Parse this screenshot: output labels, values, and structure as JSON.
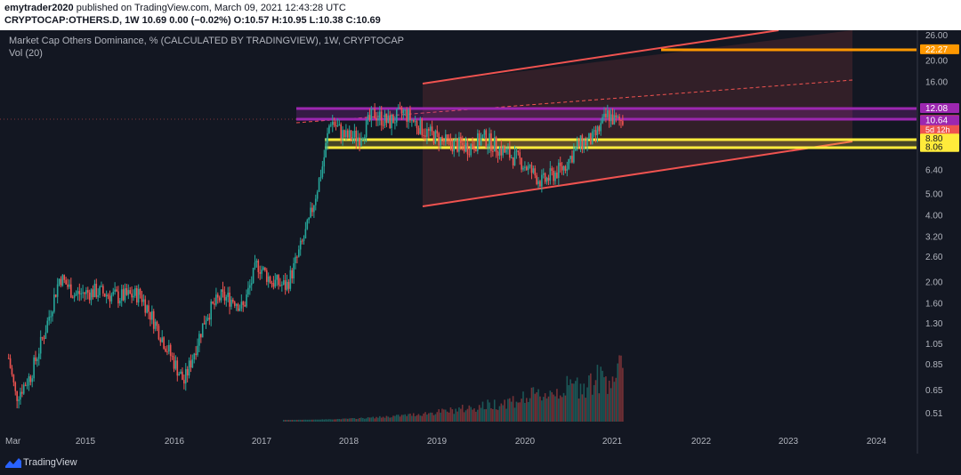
{
  "header": {
    "author": "emytrader2020",
    "published_text": "published on TradingView.com, March 09, 2021 12:43:28 UTC",
    "symbol_line": "CRYPTOCAP:OTHERS.D, 1W 10.69 0.00 (−0.02%) O:10.57 H:10.95 L:10.38 C:10.69"
  },
  "legend": {
    "title": "Market Cap Others Dominance, % (CALCULATED BY TRADINGVIEW), 1W, CRYPTOCAP",
    "volume": "Vol (20)"
  },
  "footer": {
    "brand": "TradingView"
  },
  "colors": {
    "background": "#131722",
    "up": "#26a69a",
    "down": "#ef5350",
    "channel": "#f05350",
    "purple": "#9c27b0",
    "yellow": "#ffeb3b",
    "orange": "#ff9800"
  },
  "chart_data": {
    "type": "candlestick",
    "timeframe": "1W",
    "y_scale": "log",
    "y_ticks": [
      26.0,
      20.0,
      16.0,
      12.0,
      8.8,
      8.06,
      6.4,
      5.0,
      4.0,
      3.2,
      2.6,
      2.0,
      1.6,
      1.3,
      1.05,
      0.85,
      0.65,
      0.51
    ],
    "x_ticks": [
      "Mar",
      "2015",
      "2016",
      "2017",
      "2018",
      "2019",
      "2020",
      "2021",
      "2022",
      "2023",
      "2024"
    ],
    "price_labels": [
      {
        "value": "22.27",
        "color": "#ff9800"
      },
      {
        "value": "12.08",
        "color": "#9c27b0"
      },
      {
        "value": "10.69",
        "color": "#ef5350",
        "sub": "5d 12h"
      },
      {
        "value": "10.64",
        "color": "#9c27b0"
      },
      {
        "value": "8.80",
        "color": "#ffeb3b"
      },
      {
        "value": "8.06",
        "color": "#ffeb3b"
      }
    ],
    "price_path": [
      [
        "2014-03",
        0.9
      ],
      [
        "2014-04",
        0.6
      ],
      [
        "2014-06",
        0.75
      ],
      [
        "2014-08",
        1.2
      ],
      [
        "2014-10",
        2.1
      ],
      [
        "2014-12",
        1.75
      ],
      [
        "2015-03",
        1.8
      ],
      [
        "2015-06",
        1.7
      ],
      [
        "2015-09",
        1.75
      ],
      [
        "2015-11",
        1.3
      ],
      [
        "2016-01",
        0.95
      ],
      [
        "2016-03",
        0.7
      ],
      [
        "2016-06",
        1.4
      ],
      [
        "2016-08",
        1.7
      ],
      [
        "2016-10",
        1.65
      ],
      [
        "2016-11",
        1.5
      ],
      [
        "2017-01",
        2.4
      ],
      [
        "2017-03",
        2.0
      ],
      [
        "2017-05",
        1.9
      ],
      [
        "2017-06",
        2.3
      ],
      [
        "2017-08",
        3.6
      ],
      [
        "2017-10",
        6.8
      ],
      [
        "2017-11",
        10.8
      ],
      [
        "2018-01",
        9.0
      ],
      [
        "2018-03",
        9.0
      ],
      [
        "2018-05",
        11.5
      ],
      [
        "2018-07",
        10.4
      ],
      [
        "2018-09",
        11.6
      ],
      [
        "2018-12",
        9.5
      ],
      [
        "2019-03",
        8.4
      ],
      [
        "2019-06",
        8.1
      ],
      [
        "2019-08",
        8.9
      ],
      [
        "2019-11",
        7.6
      ],
      [
        "2020-01",
        7.0
      ],
      [
        "2020-04",
        5.6
      ],
      [
        "2020-07",
        6.6
      ],
      [
        "2020-09",
        8.3
      ],
      [
        "2020-11",
        8.8
      ],
      [
        "2021-01",
        11.4
      ],
      [
        "2021-02",
        10.5
      ],
      [
        "2021-03",
        10.69
      ]
    ],
    "overlay_levels": [
      {
        "name": "purple-upper",
        "value": 12.08
      },
      {
        "name": "purple-lower",
        "value": 10.64
      },
      {
        "name": "yellow-upper",
        "value": 8.8
      },
      {
        "name": "yellow-lower",
        "value": 8.06
      },
      {
        "name": "orange-target",
        "value": 22.27
      }
    ],
    "annotations": [
      "ascending channel with shaded zone",
      "dashed channel midline"
    ],
    "volume": "histogram at bottom, rising into 2021"
  }
}
